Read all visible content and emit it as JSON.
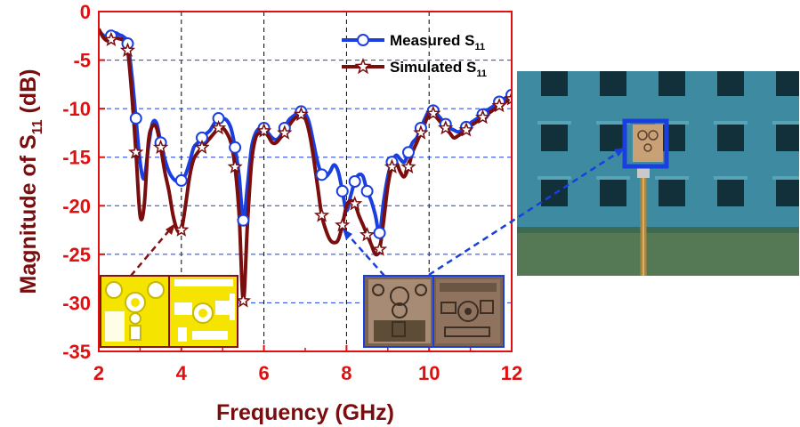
{
  "chart_data": {
    "type": "line",
    "title": "",
    "xlabel": "Frequency (GHz)",
    "ylabel": {
      "prefix": "Magnitude of S",
      "sub": "11",
      "suffix": " (dB)"
    },
    "xlim": [
      2,
      12
    ],
    "ylim": [
      -35,
      0
    ],
    "xticks": [
      "2",
      "4",
      "6",
      "8",
      "10",
      "12"
    ],
    "yticks": [
      "0",
      "-5",
      "-10",
      "-15",
      "-20",
      "-25",
      "-30",
      "-35"
    ],
    "grid": "dashed",
    "legend_position": "top-right",
    "series": [
      {
        "name": {
          "prefix": "Measured S",
          "sub": "11"
        },
        "color": "#1a3fe0",
        "marker": "circle",
        "x": [
          2.0,
          2.1,
          2.2,
          2.3,
          2.4,
          2.5,
          2.6,
          2.7,
          2.8,
          2.9,
          3.0,
          3.1,
          3.2,
          3.3,
          3.4,
          3.5,
          3.6,
          3.7,
          3.8,
          3.9,
          4.0,
          4.1,
          4.2,
          4.3,
          4.4,
          4.5,
          4.6,
          4.7,
          4.8,
          4.9,
          5.0,
          5.1,
          5.2,
          5.3,
          5.4,
          5.5,
          5.6,
          5.7,
          5.8,
          5.9,
          6.0,
          6.1,
          6.2,
          6.3,
          6.4,
          6.5,
          6.6,
          6.7,
          6.8,
          6.9,
          7.0,
          7.1,
          7.2,
          7.3,
          7.4,
          7.5,
          7.6,
          7.7,
          7.8,
          7.9,
          8.0,
          8.1,
          8.2,
          8.3,
          8.4,
          8.5,
          8.6,
          8.7,
          8.8,
          8.9,
          9.0,
          9.1,
          9.2,
          9.3,
          9.4,
          9.5,
          9.6,
          9.7,
          9.8,
          9.9,
          10.0,
          10.1,
          10.2,
          10.3,
          10.4,
          10.5,
          10.6,
          10.7,
          10.8,
          10.9,
          11.0,
          11.1,
          11.2,
          11.3,
          11.4,
          11.5,
          11.6,
          11.7,
          11.8,
          11.9,
          12.0
        ],
        "values": [
          -2.0,
          -2.4,
          -2.7,
          -2.5,
          -2.2,
          -2.4,
          -2.6,
          -3.3,
          -6.5,
          -11.0,
          -15.5,
          -17.2,
          -14.0,
          -11.5,
          -11.5,
          -13.5,
          -15.2,
          -16.5,
          -17.2,
          -17.5,
          -17.4,
          -16.8,
          -15.5,
          -14.0,
          -13.5,
          -13.0,
          -12.6,
          -12.2,
          -11.5,
          -11.0,
          -11.0,
          -11.2,
          -12.0,
          -14.0,
          -17.0,
          -21.5,
          -18.0,
          -14.0,
          -12.5,
          -12.0,
          -12.0,
          -12.5,
          -13.0,
          -13.2,
          -12.8,
          -12.0,
          -11.2,
          -10.8,
          -10.5,
          -10.3,
          -10.5,
          -11.5,
          -13.5,
          -15.5,
          -16.8,
          -17.0,
          -16.5,
          -15.8,
          -16.5,
          -18.5,
          -20.5,
          -19.0,
          -17.5,
          -16.8,
          -17.0,
          -18.5,
          -19.5,
          -21.0,
          -22.8,
          -19.5,
          -17.0,
          -15.5,
          -14.8,
          -15.2,
          -15.5,
          -14.5,
          -13.5,
          -13.0,
          -12.0,
          -11.0,
          -10.2,
          -10.2,
          -10.6,
          -11.1,
          -11.6,
          -12.0,
          -12.2,
          -12.4,
          -12.2,
          -11.9,
          -11.5,
          -11.2,
          -10.9,
          -10.6,
          -10.2,
          -9.9,
          -9.6,
          -9.3,
          -9.0,
          -8.8,
          -8.6
        ]
      },
      {
        "name": {
          "prefix": "Simulated S",
          "sub": "11"
        },
        "color": "#7a0d0d",
        "marker": "star",
        "x": [
          2.0,
          2.1,
          2.2,
          2.3,
          2.4,
          2.5,
          2.6,
          2.7,
          2.8,
          2.9,
          3.0,
          3.1,
          3.2,
          3.3,
          3.4,
          3.5,
          3.6,
          3.7,
          3.8,
          3.9,
          4.0,
          4.1,
          4.2,
          4.3,
          4.4,
          4.5,
          4.6,
          4.7,
          4.8,
          4.9,
          5.0,
          5.1,
          5.2,
          5.3,
          5.4,
          5.5,
          5.6,
          5.7,
          5.8,
          5.9,
          6.0,
          6.1,
          6.2,
          6.3,
          6.4,
          6.5,
          6.6,
          6.7,
          6.8,
          6.9,
          7.0,
          7.1,
          7.2,
          7.3,
          7.4,
          7.5,
          7.6,
          7.7,
          7.8,
          7.9,
          8.0,
          8.1,
          8.2,
          8.3,
          8.4,
          8.5,
          8.6,
          8.7,
          8.8,
          8.9,
          9.0,
          9.1,
          9.2,
          9.3,
          9.4,
          9.5,
          9.6,
          9.7,
          9.8,
          9.9,
          10.0,
          10.1,
          10.2,
          10.3,
          10.4,
          10.5,
          10.6,
          10.7,
          10.8,
          10.9,
          11.0,
          11.1,
          11.2,
          11.3,
          11.4,
          11.5,
          11.6,
          11.7,
          11.8,
          11.9,
          12.0
        ],
        "values": [
          -1.8,
          -2.6,
          -3.0,
          -2.9,
          -2.7,
          -2.8,
          -3.0,
          -4.0,
          -8.5,
          -14.5,
          -21.0,
          -20.0,
          -13.5,
          -11.8,
          -12.0,
          -14.0,
          -16.5,
          -18.5,
          -21.0,
          -22.5,
          -22.5,
          -20.0,
          -17.0,
          -15.2,
          -14.5,
          -14.0,
          -13.5,
          -13.0,
          -12.5,
          -12.0,
          -12.0,
          -12.5,
          -13.5,
          -16.0,
          -21.0,
          -29.8,
          -22.0,
          -15.5,
          -13.0,
          -12.5,
          -12.3,
          -12.8,
          -13.5,
          -13.5,
          -13.0,
          -12.5,
          -11.8,
          -11.2,
          -10.8,
          -10.6,
          -11.0,
          -12.5,
          -15.0,
          -18.0,
          -21.0,
          -22.5,
          -23.5,
          -23.8,
          -23.5,
          -22.0,
          -20.0,
          -19.5,
          -19.8,
          -21.0,
          -22.0,
          -23.0,
          -24.0,
          -25.0,
          -24.5,
          -21.5,
          -18.0,
          -16.0,
          -15.5,
          -16.5,
          -17.0,
          -16.0,
          -14.5,
          -13.5,
          -12.5,
          -11.5,
          -10.5,
          -10.5,
          -11.0,
          -11.5,
          -12.0,
          -12.5,
          -13.0,
          -12.8,
          -12.5,
          -12.2,
          -11.8,
          -11.5,
          -11.2,
          -10.9,
          -10.6,
          -10.3,
          -10.0,
          -9.7,
          -9.4,
          -9.2,
          -9.0
        ]
      }
    ],
    "marker_x": [
      2.3,
      2.7,
      2.9,
      3.5,
      4.0,
      4.5,
      4.9,
      5.3,
      5.5,
      6.0,
      6.5,
      6.9,
      7.4,
      7.9,
      8.2,
      8.5,
      8.8,
      9.1,
      9.5,
      9.8,
      10.1,
      10.4,
      10.9,
      11.3,
      11.7,
      12.0
    ]
  },
  "photo": {
    "name": "anechoic chamber photograph with antenna on coaxial cable"
  },
  "insets": [
    {
      "name": "simulated antenna layout (yellow)",
      "border": "#8a1010"
    },
    {
      "name": "fabricated antenna prototype photo",
      "border": "#1a3fe0"
    }
  ]
}
